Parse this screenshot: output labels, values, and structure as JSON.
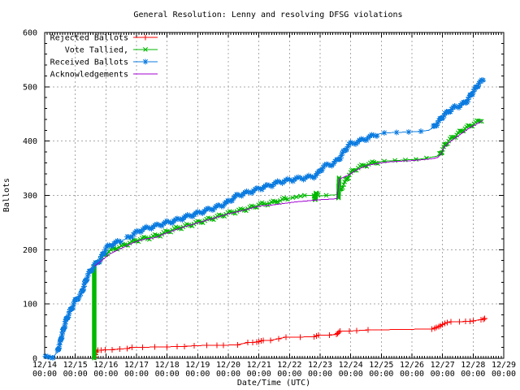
{
  "title": "General Resolution: Lenny and resolving DFSG violations",
  "chart_data": {
    "type": "line",
    "title": "General Resolution: Lenny and resolving DFSG violations",
    "xlabel": "Date/Time (UTC)",
    "ylabel": "Ballots",
    "ylim": [
      0,
      600
    ],
    "y_tick_step": 100,
    "x_tick_labels": [
      "12/14",
      "12/15",
      "12/16",
      "12/17",
      "12/18",
      "12/19",
      "12/20",
      "12/21",
      "12/22",
      "12/23",
      "12/24",
      "12/25",
      "12/26",
      "12/27",
      "12/28",
      "12/29"
    ],
    "x_tick_sub_label": "00:00",
    "grid": true,
    "legend_position": "top-left",
    "colors": {
      "grid": "#a8a8a8",
      "axis": "#000000"
    },
    "series": [
      {
        "name": "Rejected Ballots",
        "color": "#ff0000",
        "marker": "plus",
        "marker_mode": "points",
        "points": [
          [
            1.63,
            2
          ],
          [
            1.66,
            7
          ],
          [
            1.7,
            12
          ],
          [
            1.74,
            15
          ],
          [
            1.85,
            15
          ],
          [
            1.98,
            16
          ],
          [
            2.2,
            16
          ],
          [
            2.45,
            17
          ],
          [
            2.7,
            18
          ],
          [
            2.85,
            20
          ],
          [
            3.2,
            20
          ],
          [
            3.6,
            21
          ],
          [
            4.0,
            21
          ],
          [
            4.33,
            22
          ],
          [
            4.57,
            22
          ],
          [
            4.88,
            23
          ],
          [
            5.3,
            24
          ],
          [
            5.63,
            24
          ],
          [
            5.84,
            24
          ],
          [
            6.3,
            25
          ],
          [
            6.64,
            29
          ],
          [
            6.8,
            29
          ],
          [
            6.93,
            30
          ],
          [
            7.0,
            31
          ],
          [
            7.07,
            32
          ],
          [
            7.14,
            33
          ],
          [
            7.38,
            33
          ],
          [
            7.64,
            36
          ],
          [
            7.88,
            39
          ],
          [
            8.35,
            39
          ],
          [
            8.8,
            40
          ],
          [
            8.88,
            41
          ],
          [
            8.95,
            43
          ],
          [
            9.3,
            43
          ],
          [
            9.53,
            44
          ],
          [
            9.57,
            46
          ],
          [
            9.61,
            48
          ],
          [
            9.65,
            50
          ],
          [
            9.95,
            50
          ],
          [
            10.2,
            51
          ],
          [
            10.56,
            52
          ],
          [
            12.65,
            54
          ],
          [
            12.74,
            55
          ],
          [
            12.8,
            57
          ],
          [
            12.87,
            58
          ],
          [
            12.93,
            60
          ],
          [
            13.0,
            62
          ],
          [
            13.08,
            64
          ],
          [
            13.16,
            66
          ],
          [
            13.27,
            67
          ],
          [
            13.55,
            67
          ],
          [
            13.75,
            68
          ],
          [
            13.9,
            68
          ],
          [
            14.0,
            69
          ],
          [
            14.25,
            71
          ],
          [
            14.33,
            72
          ],
          [
            14.38,
            73
          ]
        ]
      },
      {
        "name": "Vote Tallied,",
        "color": "#00b800",
        "marker": "cross",
        "marker_mode": "regions",
        "marker_regions": [
          {
            "from": 1.615,
            "to": 1.625,
            "step": 1.0,
            "jitter": false
          },
          {
            "from": 1.66,
            "to": 7.95,
            "step": 2.3
          },
          {
            "from": 8.1,
            "to": 8.5,
            "step": 5
          },
          {
            "from": 8.79,
            "to": 8.96,
            "step": 1.4,
            "jitter": false
          },
          {
            "from": 9.2,
            "to": 9.58,
            "step": 18
          },
          {
            "from": 9.59,
            "to": 9.63,
            "step": 1.0,
            "jitter": false
          },
          {
            "from": 9.65,
            "to": 11.0,
            "step": 2.3
          },
          {
            "from": 11.1,
            "to": 12.88,
            "step": 13
          },
          {
            "from": 12.9,
            "to": 14.3,
            "step": 2.1
          }
        ],
        "points": [
          [
            1.62,
            0
          ],
          [
            1.62,
            170
          ],
          [
            1.66,
            173
          ],
          [
            1.75,
            178
          ],
          [
            1.85,
            184
          ],
          [
            1.95,
            190
          ],
          [
            2.05,
            195
          ],
          [
            2.2,
            200
          ],
          [
            2.4,
            204
          ],
          [
            2.6,
            208
          ],
          [
            2.8,
            213
          ],
          [
            3.0,
            217
          ],
          [
            3.2,
            220
          ],
          [
            3.5,
            223
          ],
          [
            3.8,
            228
          ],
          [
            4.0,
            233
          ],
          [
            4.3,
            239
          ],
          [
            4.6,
            243
          ],
          [
            4.9,
            248
          ],
          [
            5.2,
            253
          ],
          [
            5.5,
            258
          ],
          [
            5.8,
            263
          ],
          [
            6.0,
            267
          ],
          [
            6.3,
            271
          ],
          [
            6.6,
            275
          ],
          [
            6.9,
            280
          ],
          [
            7.0,
            283
          ],
          [
            7.2,
            284
          ],
          [
            7.4,
            286
          ],
          [
            7.6,
            289
          ],
          [
            7.8,
            292
          ],
          [
            7.95,
            294
          ],
          [
            8.1,
            296
          ],
          [
            8.3,
            298
          ],
          [
            8.5,
            300
          ],
          [
            8.8,
            300
          ],
          [
            8.84,
            291
          ],
          [
            8.87,
            305
          ],
          [
            8.95,
            299
          ],
          [
            9.2,
            300
          ],
          [
            9.5,
            301
          ],
          [
            9.58,
            302
          ],
          [
            9.6,
            295
          ],
          [
            9.62,
            333
          ],
          [
            9.65,
            308
          ],
          [
            9.75,
            318
          ],
          [
            9.85,
            328
          ],
          [
            9.95,
            337
          ],
          [
            10.05,
            344
          ],
          [
            10.15,
            348
          ],
          [
            10.3,
            352
          ],
          [
            10.5,
            356
          ],
          [
            10.7,
            359
          ],
          [
            10.9,
            362
          ],
          [
            11.1,
            363
          ],
          [
            11.4,
            364
          ],
          [
            11.7,
            365
          ],
          [
            12.0,
            366
          ],
          [
            12.3,
            367
          ],
          [
            12.6,
            370
          ],
          [
            12.8,
            372
          ],
          [
            12.9,
            374
          ],
          [
            12.97,
            380
          ],
          [
            13.03,
            387
          ],
          [
            13.1,
            394
          ],
          [
            13.2,
            400
          ],
          [
            13.3,
            405
          ],
          [
            13.4,
            409
          ],
          [
            13.5,
            413
          ],
          [
            13.6,
            418
          ],
          [
            13.7,
            422
          ],
          [
            13.8,
            425
          ],
          [
            13.9,
            428
          ],
          [
            14.0,
            431
          ],
          [
            14.1,
            434
          ],
          [
            14.2,
            437
          ],
          [
            14.3,
            440
          ]
        ]
      },
      {
        "name": "Received Ballots",
        "color": "#0b7be0",
        "marker": "star",
        "marker_mode": "regions",
        "marker_regions": [
          {
            "from": 0.02,
            "to": 0.32,
            "step": 3.2
          },
          {
            "from": 0.32,
            "to": 2.6,
            "step": 2.2
          },
          {
            "from": 2.6,
            "to": 8.95,
            "step": 2.2
          },
          {
            "from": 8.95,
            "to": 10.95,
            "step": 2.3
          },
          {
            "from": 10.95,
            "to": 12.58,
            "step": 15
          },
          {
            "from": 12.6,
            "to": 14.33,
            "step": 2.0
          }
        ],
        "points": [
          [
            0.02,
            1
          ],
          [
            0.3,
            4
          ],
          [
            0.42,
            12
          ],
          [
            0.5,
            28
          ],
          [
            0.6,
            50
          ],
          [
            0.7,
            70
          ],
          [
            0.8,
            83
          ],
          [
            0.9,
            94
          ],
          [
            1.0,
            106
          ],
          [
            1.1,
            112
          ],
          [
            1.2,
            119
          ],
          [
            1.3,
            136
          ],
          [
            1.4,
            151
          ],
          [
            1.5,
            161
          ],
          [
            1.6,
            169
          ],
          [
            1.7,
            175
          ],
          [
            1.8,
            181
          ],
          [
            1.9,
            190
          ],
          [
            2.0,
            202
          ],
          [
            2.1,
            207
          ],
          [
            2.25,
            211
          ],
          [
            2.5,
            216
          ],
          [
            2.7,
            221
          ],
          [
            2.9,
            228
          ],
          [
            3.1,
            235
          ],
          [
            3.3,
            239
          ],
          [
            3.6,
            243
          ],
          [
            4.0,
            250
          ],
          [
            4.3,
            254
          ],
          [
            4.6,
            260
          ],
          [
            4.9,
            265
          ],
          [
            5.2,
            271
          ],
          [
            5.5,
            276
          ],
          [
            5.8,
            282
          ],
          [
            6.0,
            288
          ],
          [
            6.15,
            294
          ],
          [
            6.3,
            300
          ],
          [
            6.5,
            303
          ],
          [
            6.8,
            308
          ],
          [
            7.1,
            314
          ],
          [
            7.4,
            319
          ],
          [
            7.7,
            325
          ],
          [
            8.0,
            328
          ],
          [
            8.3,
            331
          ],
          [
            8.6,
            333
          ],
          [
            8.85,
            336
          ],
          [
            8.95,
            341
          ],
          [
            9.05,
            349
          ],
          [
            9.15,
            354
          ],
          [
            9.35,
            357
          ],
          [
            9.45,
            359
          ],
          [
            9.6,
            366
          ],
          [
            9.75,
            378
          ],
          [
            9.9,
            390
          ],
          [
            10.0,
            395
          ],
          [
            10.2,
            398
          ],
          [
            10.4,
            402
          ],
          [
            10.7,
            409
          ],
          [
            10.9,
            413
          ],
          [
            11.1,
            415
          ],
          [
            11.5,
            416
          ],
          [
            12.0,
            417
          ],
          [
            12.3,
            418
          ],
          [
            12.55,
            420
          ],
          [
            12.7,
            425
          ],
          [
            12.85,
            434
          ],
          [
            13.0,
            445
          ],
          [
            13.15,
            452
          ],
          [
            13.3,
            459
          ],
          [
            13.45,
            463
          ],
          [
            13.55,
            465
          ],
          [
            13.7,
            469
          ],
          [
            13.8,
            474
          ],
          [
            13.85,
            478
          ],
          [
            13.95,
            487
          ],
          [
            14.05,
            494
          ],
          [
            14.1,
            498
          ],
          [
            14.15,
            503
          ],
          [
            14.2,
            507
          ],
          [
            14.26,
            509
          ],
          [
            14.33,
            511
          ]
        ]
      },
      {
        "name": "Acknowledgements",
        "color": "#a000d0",
        "marker": "none",
        "marker_mode": "none",
        "points": [
          [
            1.63,
            170
          ],
          [
            1.8,
            177
          ],
          [
            1.95,
            184
          ],
          [
            2.1,
            191
          ],
          [
            2.3,
            197
          ],
          [
            2.6,
            205
          ],
          [
            2.9,
            213
          ],
          [
            3.1,
            217
          ],
          [
            3.3,
            220
          ],
          [
            3.6,
            222
          ],
          [
            3.9,
            229
          ],
          [
            4.2,
            235
          ],
          [
            4.5,
            241
          ],
          [
            4.8,
            246
          ],
          [
            5.1,
            251
          ],
          [
            5.4,
            256
          ],
          [
            5.7,
            261
          ],
          [
            6.0,
            266
          ],
          [
            6.3,
            270
          ],
          [
            6.6,
            274
          ],
          [
            6.9,
            279
          ],
          [
            7.1,
            281
          ],
          [
            7.4,
            282
          ],
          [
            7.8,
            285
          ],
          [
            8.2,
            288
          ],
          [
            8.6,
            290
          ],
          [
            9.0,
            292
          ],
          [
            9.3,
            293
          ],
          [
            9.55,
            294
          ],
          [
            9.63,
            330
          ],
          [
            9.75,
            333
          ],
          [
            9.9,
            337
          ],
          [
            10.0,
            340
          ],
          [
            10.2,
            347
          ],
          [
            10.4,
            352
          ],
          [
            10.6,
            356
          ],
          [
            10.8,
            358
          ],
          [
            11.0,
            360
          ],
          [
            11.3,
            362
          ],
          [
            11.6,
            363
          ],
          [
            12.0,
            364
          ],
          [
            12.4,
            366
          ],
          [
            12.7,
            368
          ],
          [
            12.85,
            370
          ],
          [
            12.95,
            376
          ],
          [
            13.05,
            388
          ],
          [
            13.15,
            394
          ],
          [
            13.25,
            399
          ],
          [
            13.4,
            405
          ],
          [
            13.55,
            411
          ],
          [
            13.7,
            417
          ],
          [
            13.85,
            423
          ],
          [
            14.0,
            428
          ],
          [
            14.1,
            431
          ],
          [
            14.2,
            434
          ],
          [
            14.3,
            438
          ]
        ]
      }
    ]
  }
}
